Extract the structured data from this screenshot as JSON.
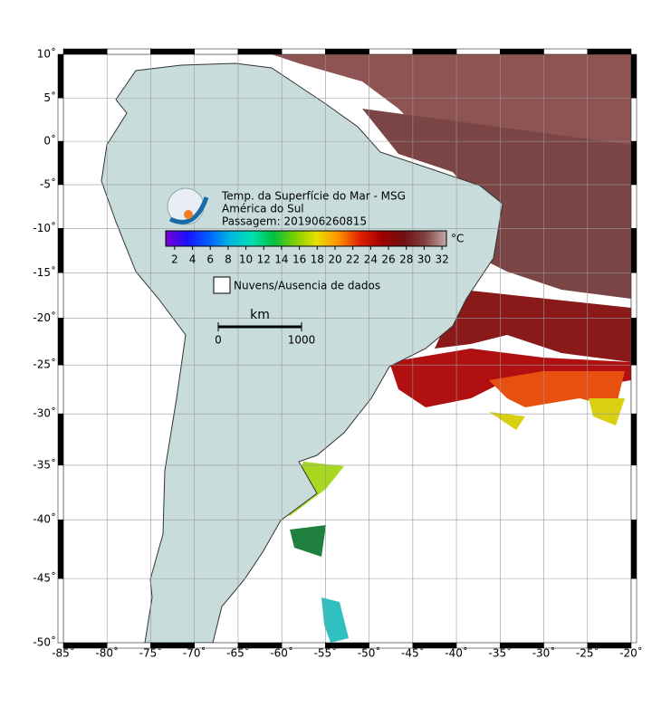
{
  "header": {
    "title": "Temp. da Superfície do Mar - MSG",
    "region": "América do Sul",
    "pass": "Passagem: 201906260815"
  },
  "colorbar": {
    "unit": "°C",
    "lim": [
      1,
      32.5
    ],
    "ticks": [
      2,
      4,
      6,
      8,
      10,
      12,
      14,
      16,
      18,
      20,
      22,
      24,
      26,
      28,
      30,
      32
    ],
    "colors": [
      "#7a00d0",
      "#1a10ff",
      "#0060ff",
      "#00b8e0",
      "#00e0b0",
      "#00c040",
      "#80d000",
      "#e8e000",
      "#ff9000",
      "#e02000",
      "#a00000",
      "#701010",
      "#804040",
      "#c8a8a8"
    ]
  },
  "legend": {
    "label": "Nuvens/Ausencia de dados"
  },
  "scale_bar": {
    "unit": "km",
    "ticks": [
      0,
      1000
    ]
  },
  "axes": {
    "xlim": [
      -85,
      -20
    ],
    "ylim": [
      -50,
      10
    ],
    "xticks": [
      {
        "value": -85,
        "label": "-85˚"
      },
      {
        "value": -80,
        "label": "-80˚"
      },
      {
        "value": -75,
        "label": "-75˚"
      },
      {
        "value": -70,
        "label": "-70˚"
      },
      {
        "value": -65,
        "label": "-65˚"
      },
      {
        "value": -60,
        "label": "-60˚"
      },
      {
        "value": -55,
        "label": "-55˚"
      },
      {
        "value": -50,
        "label": "-50˚"
      },
      {
        "value": -45,
        "label": "-45˚"
      },
      {
        "value": -40,
        "label": "-40˚"
      },
      {
        "value": -35,
        "label": "-35˚"
      },
      {
        "value": -30,
        "label": "-30˚"
      },
      {
        "value": -25,
        "label": "-25˚"
      },
      {
        "value": -20,
        "label": "-20˚"
      }
    ],
    "yticks": [
      {
        "value": 10,
        "label": "10˚"
      },
      {
        "value": 5,
        "label": "5˚"
      },
      {
        "value": 0,
        "label": "0˚"
      },
      {
        "value": -5,
        "label": "-5˚"
      },
      {
        "value": -10,
        "label": "-10˚"
      },
      {
        "value": -15,
        "label": "-15˚"
      },
      {
        "value": -20,
        "label": "-20˚"
      },
      {
        "value": -25,
        "label": "-25˚"
      },
      {
        "value": -30,
        "label": "-30˚"
      },
      {
        "value": -35,
        "label": "-35˚"
      },
      {
        "value": -40,
        "label": "-40˚"
      },
      {
        "value": -45,
        "label": "-45˚"
      },
      {
        "value": -50,
        "label": "-50˚"
      }
    ]
  }
}
